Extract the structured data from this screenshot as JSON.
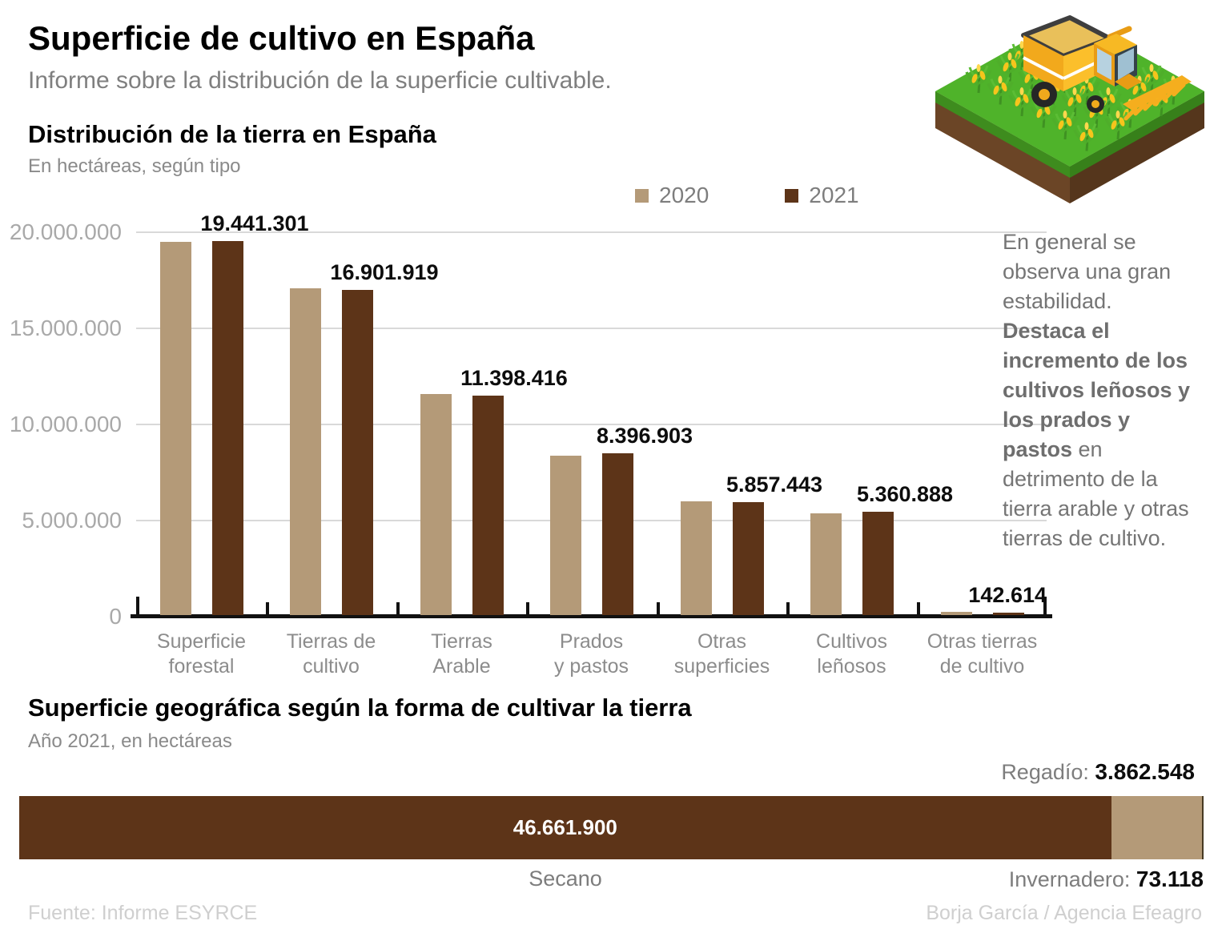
{
  "header": {
    "title": "Superficie de cultivo en España",
    "subtitle": "Informe sobre la distribución de la superficie cultivable."
  },
  "section_distribution": {
    "title": "Distribución de la tierra en España",
    "subtitle": "En hectáreas, según tipo"
  },
  "annotation": {
    "text_before": "En general se observa una gran estabilidad. ",
    "text_bold": "Destaca el incremento de los cultivos leñosos y los prados y pastos",
    "text_after": " en detrimento de la tierra arable y otras tierras de cultivo."
  },
  "section_geography": {
    "title": "Superficie geográfica según la forma de cultivar la tierra",
    "subtitle": "Año 2021, en hectáreas"
  },
  "stacked_bar_labels": {
    "secano": "Secano",
    "secano_value": "46.661.900",
    "regadio_label": "Regadío:",
    "regadio_value": "3.862.548",
    "invernadero_label": "Invernadero:",
    "invernadero_value": "73.118"
  },
  "footer": {
    "source": "Fuente: Informe ESYRCE",
    "credit": "Borja García / Agencia Efeagro"
  },
  "colors": {
    "tan_2020": "#b49a78",
    "brown_2021": "#5d3418",
    "invernadero": "#473a22",
    "grid": "#d9d9d9",
    "axis": "#111111"
  },
  "chart_data": [
    {
      "type": "bar",
      "title": "Distribución de la tierra en España",
      "ylabel": "hectáreas",
      "categories": [
        "Superficie\nforestal",
        "Tierras de\ncultivo",
        "Tierras\nArable",
        "Prados\ny pastos",
        "Otras\nsuperficies",
        "Cultivos\nleñosos",
        "Otras tierras\nde cultivo"
      ],
      "series": [
        {
          "name": "2020",
          "color": "#b49a78",
          "estimated": true,
          "values": [
            19400000,
            17000000,
            11500000,
            8300000,
            5900000,
            5300000,
            170000
          ]
        },
        {
          "name": "2021",
          "color": "#5d3418",
          "values": [
            19441301,
            16901919,
            11398416,
            8396903,
            5857443,
            5360888,
            142614
          ],
          "value_labels": [
            "19.441.301",
            "16.901.919",
            "11.398.416",
            "8.396.903",
            "5.857.443",
            "5.360.888",
            "142.614"
          ]
        }
      ],
      "ylim": [
        0,
        20000000
      ],
      "ytick_labels": [
        "0",
        "5.000.000",
        "10.000.000",
        "15.000.000",
        "20.000.000"
      ],
      "grid": "horizontal",
      "legend_position": "top"
    },
    {
      "type": "stacked-bar",
      "orientation": "horizontal",
      "year": "2021",
      "segments": [
        {
          "name": "Secano",
          "value": 46661900,
          "label": "46.661.900",
          "color": "#5d3418"
        },
        {
          "name": "Regadío",
          "value": 3862548,
          "label": "3.862.548",
          "color": "#b49a78"
        },
        {
          "name": "Invernadero",
          "value": 73118,
          "label": "73.118",
          "color": "#473a22"
        }
      ]
    }
  ]
}
